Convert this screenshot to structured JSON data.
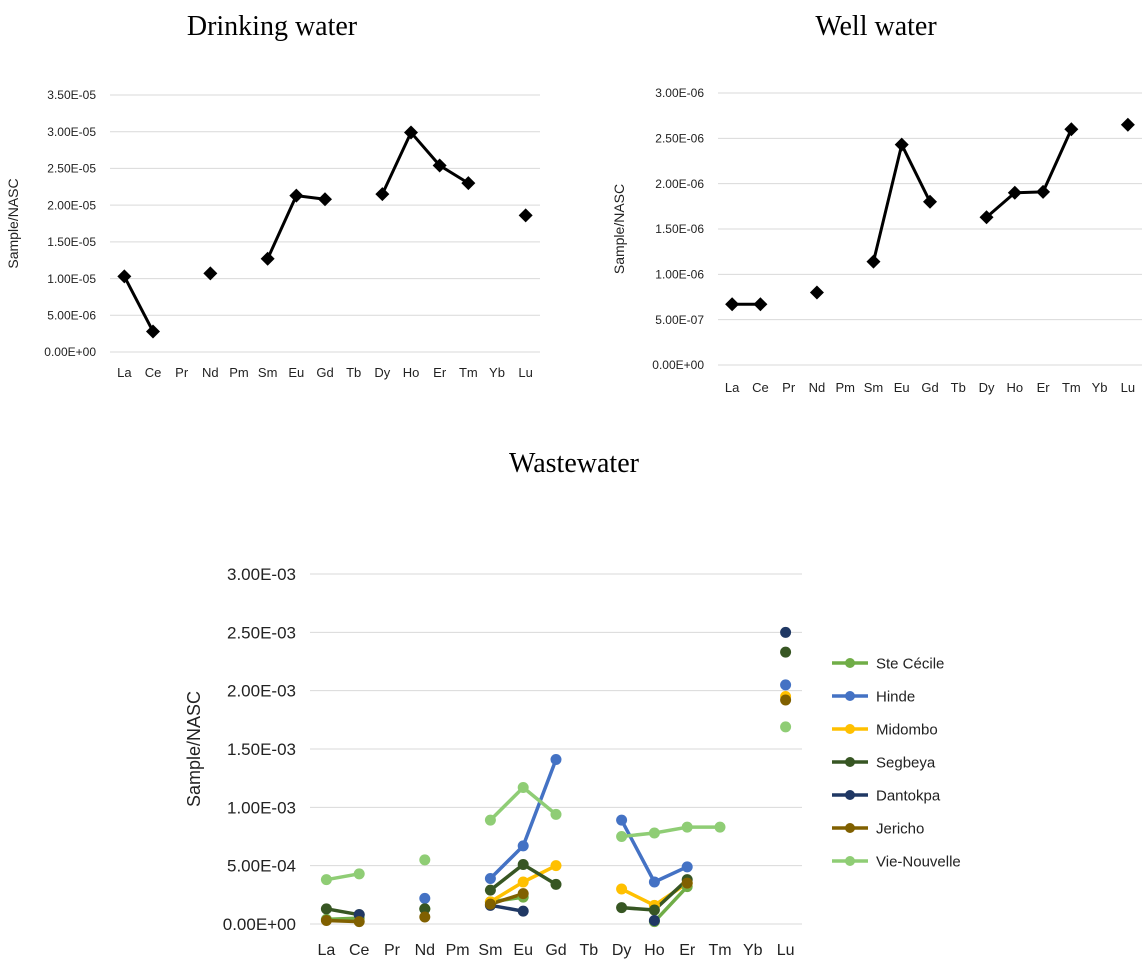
{
  "chart_data": [
    {
      "type": "line",
      "title": "Drinking water",
      "xlabel": "",
      "ylabel": "Sample/NASC",
      "categories": [
        "La",
        "Ce",
        "Pr",
        "Nd",
        "Pm",
        "Sm",
        "Eu",
        "Gd",
        "Tb",
        "Dy",
        "Ho",
        "Er",
        "Tm",
        "Yb",
        "Lu"
      ],
      "ylim": [
        0,
        3.5e-05
      ],
      "yticks": [
        "0.00E+00",
        "5.00E-06",
        "1.00E-05",
        "1.50E-05",
        "2.00E-05",
        "2.50E-05",
        "3.00E-05",
        "3.50E-05"
      ],
      "grid": true,
      "legend": false,
      "series": [
        {
          "color": "#000000",
          "marker": "diamond",
          "values": [
            1.03e-05,
            2.8e-06,
            null,
            1.07e-05,
            null,
            1.27e-05,
            2.13e-05,
            2.08e-05,
            null,
            2.15e-05,
            2.99e-05,
            2.54e-05,
            2.3e-05,
            null,
            1.86e-05
          ]
        }
      ]
    },
    {
      "type": "line",
      "title": "Well water",
      "xlabel": "",
      "ylabel": "Sample/NASC",
      "categories": [
        "La",
        "Ce",
        "Pr",
        "Nd",
        "Pm",
        "Sm",
        "Eu",
        "Gd",
        "Tb",
        "Dy",
        "Ho",
        "Er",
        "Tm",
        "Yb",
        "Lu"
      ],
      "ylim": [
        0,
        3e-06
      ],
      "yticks": [
        "0.00E+00",
        "5.00E-07",
        "1.00E-06",
        "1.50E-06",
        "2.00E-06",
        "2.50E-06",
        "3.00E-06"
      ],
      "grid": true,
      "legend": false,
      "series": [
        {
          "color": "#000000",
          "marker": "diamond",
          "values": [
            6.7e-07,
            6.7e-07,
            null,
            8e-07,
            null,
            1.14e-06,
            2.43e-06,
            1.8e-06,
            null,
            1.63e-06,
            1.9e-06,
            1.91e-06,
            2.6e-06,
            null,
            2.65e-06
          ]
        }
      ]
    },
    {
      "type": "line",
      "title": "Wastewater",
      "xlabel": "",
      "ylabel": "Sample/NASC",
      "categories": [
        "La",
        "Ce",
        "Pr",
        "Nd",
        "Pm",
        "Sm",
        "Eu",
        "Gd",
        "Tb",
        "Dy",
        "Ho",
        "Er",
        "Tm",
        "Yb",
        "Lu"
      ],
      "ylim": [
        0,
        0.003
      ],
      "yticks": [
        "0.00E+00",
        "5.00E-04",
        "1.00E-03",
        "1.50E-03",
        "2.00E-03",
        "2.50E-03",
        "3.00E-03"
      ],
      "grid": true,
      "legend": "right",
      "series": [
        {
          "name": "Ste Cécile",
          "color": "#70ad47",
          "marker": "circle",
          "values": [
            4e-05,
            5e-05,
            null,
            0.00013,
            null,
            0.00019,
            0.00023,
            null,
            null,
            null,
            2e-05,
            0.00032,
            null,
            null,
            null
          ]
        },
        {
          "name": "Hinde",
          "color": "#4472c4",
          "marker": "circle",
          "values": [
            null,
            null,
            null,
            0.00022,
            null,
            0.00039,
            0.00067,
            0.00141,
            null,
            0.00089,
            0.00036,
            0.00049,
            null,
            null,
            0.00205
          ]
        },
        {
          "name": "Midombo",
          "color": "#ffc000",
          "marker": "circle",
          "values": [
            null,
            null,
            null,
            null,
            null,
            0.00019,
            0.00036,
            0.0005,
            null,
            0.0003,
            0.00016,
            0.00035,
            null,
            null,
            0.00195
          ]
        },
        {
          "name": "Segbeya",
          "color": "#375623",
          "marker": "circle",
          "values": [
            0.00013,
            8e-05,
            null,
            0.00013,
            null,
            0.00029,
            0.00051,
            0.00034,
            null,
            0.00014,
            0.00012,
            0.00038,
            null,
            null,
            0.00233
          ]
        },
        {
          "name": "Dantokpa",
          "color": "#203864",
          "marker": "circle",
          "values": [
            null,
            8e-05,
            null,
            null,
            null,
            0.00016,
            0.00011,
            null,
            null,
            null,
            3e-05,
            null,
            null,
            null,
            0.0025
          ]
        },
        {
          "name": "Jericho",
          "color": "#806000",
          "marker": "circle",
          "values": [
            3e-05,
            2e-05,
            null,
            6e-05,
            null,
            0.00017,
            0.00026,
            null,
            null,
            null,
            null,
            0.00035,
            null,
            null,
            0.00192
          ]
        },
        {
          "name": "Vie-Nouvelle",
          "color": "#8fcd75",
          "marker": "circle",
          "values": [
            0.00038,
            0.00043,
            null,
            0.00055,
            null,
            0.00089,
            0.00117,
            0.00094,
            null,
            0.00075,
            0.00078,
            0.00083,
            0.00083,
            null,
            0.00169
          ]
        }
      ]
    }
  ]
}
